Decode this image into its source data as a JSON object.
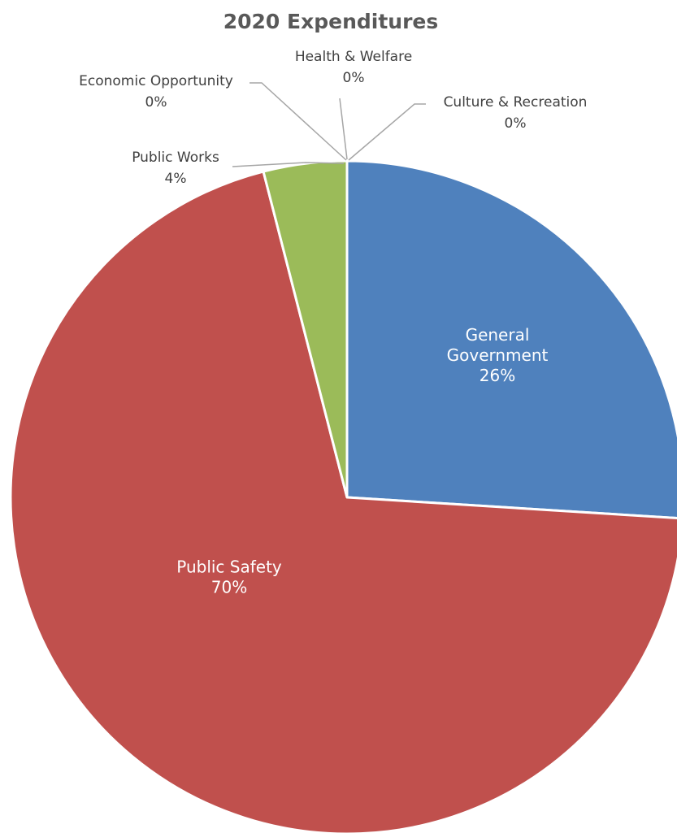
{
  "chart_data": {
    "type": "pie",
    "title": "2020 Expenditures",
    "slices": [
      {
        "name": "General Government",
        "value": 26,
        "label": "26%",
        "color": "#4f81bd",
        "name_lines": [
          "General",
          "Government"
        ]
      },
      {
        "name": "Public Safety",
        "value": 70,
        "label": "70%",
        "color": "#c0504d",
        "name_lines": [
          "Public Safety"
        ]
      },
      {
        "name": "Public Works",
        "value": 4,
        "label": "4%",
        "color": "#9bbb59",
        "name_lines": [
          "Public Works"
        ]
      },
      {
        "name": "Economic Opportunity",
        "value": 0,
        "label": "0%",
        "color": "#8064a2",
        "name_lines": [
          "Economic Opportunity"
        ]
      },
      {
        "name": "Health & Welfare",
        "value": 0,
        "label": "0%",
        "color": "#4bacc6",
        "name_lines": [
          "Health & Welfare"
        ]
      },
      {
        "name": "Culture & Recreation",
        "value": 0,
        "label": "0%",
        "color": "#f79646",
        "name_lines": [
          "Culture & Recreation"
        ]
      }
    ],
    "legend": "none",
    "label_position": "inside for large slices, outside with leader lines for small slices"
  }
}
